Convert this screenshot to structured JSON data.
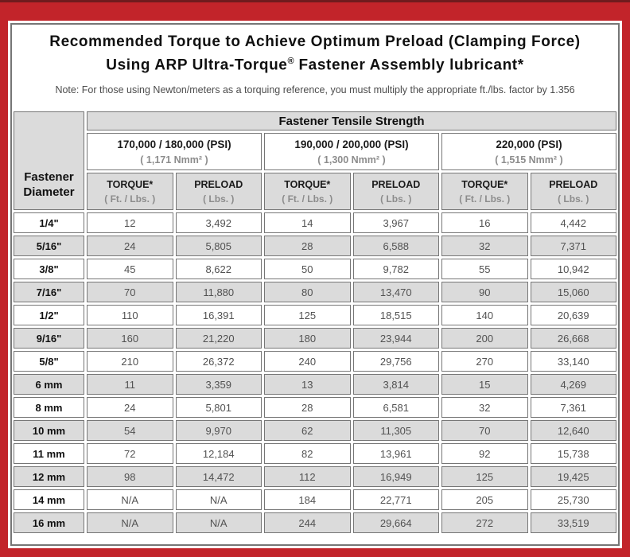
{
  "colors": {
    "frame_red": "#c2242a",
    "frame_dark_red": "#701b1e",
    "border_gray": "#767676",
    "cell_gray": "#dbdbdb"
  },
  "title": {
    "line1": "Recommended Torque to Achieve Optimum Preload (Clamping Force)",
    "line2_prefix": "Using ARP Ultra-Torque",
    "line2_reg": "®",
    "line2_suffix": " Fastener Assembly lubricant*",
    "note": "Note: For those using Newton/meters as a torquing reference, you must multiply the appropriate ft./lbs. factor by 1.356"
  },
  "table": {
    "corner_header": {
      "line1": "Fastener",
      "line2": "Diameter"
    },
    "group_header": "Fastener Tensile Strength",
    "strength_groups": [
      {
        "psi": "170,000 / 180,000 (PSI)",
        "nmm": "( 1,171 Nmm² )"
      },
      {
        "psi": "190,000 / 200,000 (PSI)",
        "nmm": "( 1,300 Nmm² )"
      },
      {
        "psi": "220,000 (PSI)",
        "nmm": "( 1,515 Nmm² )"
      }
    ],
    "col_headers": [
      {
        "label": "TORQUE*",
        "sub": "( Ft. / Lbs. )"
      },
      {
        "label": "PRELOAD",
        "sub": "( Lbs. )"
      },
      {
        "label": "TORQUE*",
        "sub": "( Ft. / Lbs. )"
      },
      {
        "label": "PRELOAD",
        "sub": "( Lbs. )"
      },
      {
        "label": "TORQUE*",
        "sub": "( Ft. / Lbs. )"
      },
      {
        "label": "PRELOAD",
        "sub": "( Lbs. )"
      }
    ],
    "rows": [
      {
        "diameter": "1/4\"",
        "values": [
          "12",
          "3,492",
          "14",
          "3,967",
          "16",
          "4,442"
        ]
      },
      {
        "diameter": "5/16\"",
        "values": [
          "24",
          "5,805",
          "28",
          "6,588",
          "32",
          "7,371"
        ]
      },
      {
        "diameter": "3/8\"",
        "values": [
          "45",
          "8,622",
          "50",
          "9,782",
          "55",
          "10,942"
        ]
      },
      {
        "diameter": "7/16\"",
        "values": [
          "70",
          "11,880",
          "80",
          "13,470",
          "90",
          "15,060"
        ]
      },
      {
        "diameter": "1/2\"",
        "values": [
          "110",
          "16,391",
          "125",
          "18,515",
          "140",
          "20,639"
        ]
      },
      {
        "diameter": "9/16\"",
        "values": [
          "160",
          "21,220",
          "180",
          "23,944",
          "200",
          "26,668"
        ]
      },
      {
        "diameter": "5/8\"",
        "values": [
          "210",
          "26,372",
          "240",
          "29,756",
          "270",
          "33,140"
        ]
      },
      {
        "diameter": "6 mm",
        "values": [
          "11",
          "3,359",
          "13",
          "3,814",
          "15",
          "4,269"
        ]
      },
      {
        "diameter": "8 mm",
        "values": [
          "24",
          "5,801",
          "28",
          "6,581",
          "32",
          "7,361"
        ]
      },
      {
        "diameter": "10 mm",
        "values": [
          "54",
          "9,970",
          "62",
          "11,305",
          "70",
          "12,640"
        ]
      },
      {
        "diameter": "11 mm",
        "values": [
          "72",
          "12,184",
          "82",
          "13,961",
          "92",
          "15,738"
        ]
      },
      {
        "diameter": "12 mm",
        "values": [
          "98",
          "14,472",
          "112",
          "16,949",
          "125",
          "19,425"
        ]
      },
      {
        "diameter": "14 mm",
        "values": [
          "N/A",
          "N/A",
          "184",
          "22,771",
          "205",
          "25,730"
        ]
      },
      {
        "diameter": "16 mm",
        "values": [
          "N/A",
          "N/A",
          "244",
          "29,664",
          "272",
          "33,519"
        ]
      }
    ]
  }
}
